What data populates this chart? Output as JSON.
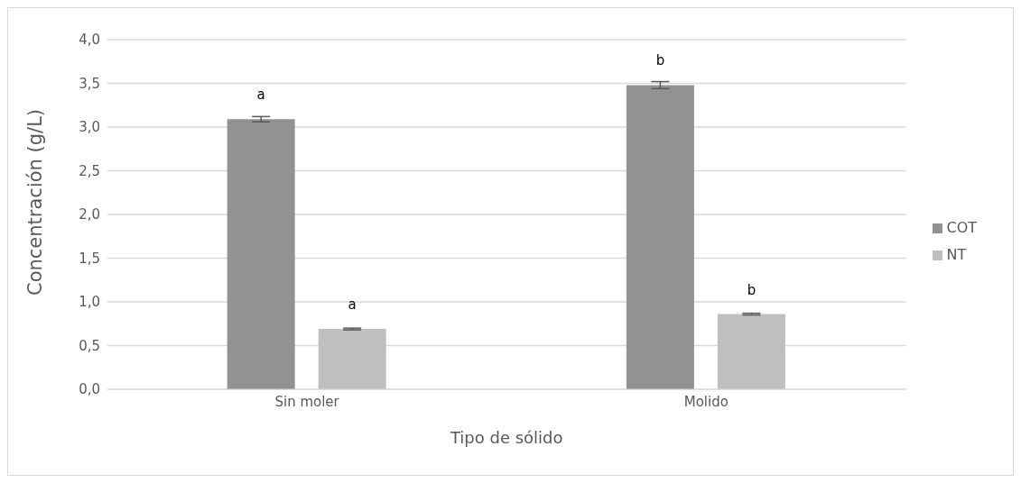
{
  "chart_data": {
    "type": "bar",
    "xlabel": "Tipo de sólido",
    "ylabel": "Concentración (g/L)",
    "categories": [
      "Sin moler",
      "Molido"
    ],
    "series": [
      {
        "name": "COT",
        "color": "#929292",
        "values": [
          3.09,
          3.48
        ],
        "errors": [
          0.03,
          0.04
        ],
        "value_labels": [
          "a",
          "b"
        ]
      },
      {
        "name": "NT",
        "color": "#bfbfbf",
        "values": [
          0.69,
          0.86
        ],
        "errors": [
          0.01,
          0.01
        ],
        "value_labels": [
          "a",
          "b"
        ]
      }
    ],
    "ylim": [
      0,
      4
    ],
    "yticks": [
      {
        "value": 0,
        "label": "0,0"
      },
      {
        "value": 0.5,
        "label": "0,5"
      },
      {
        "value": 1,
        "label": "1,0"
      },
      {
        "value": 1.5,
        "label": "1,5"
      },
      {
        "value": 2,
        "label": "2,0"
      },
      {
        "value": 2.5,
        "label": "2,5"
      },
      {
        "value": 3,
        "label": "3,0"
      },
      {
        "value": 3.5,
        "label": "3,5"
      },
      {
        "value": 4,
        "label": "4,0"
      }
    ],
    "grid": "y",
    "legend": "right"
  }
}
